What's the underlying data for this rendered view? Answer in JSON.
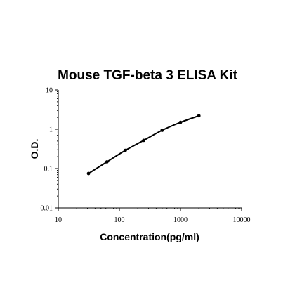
{
  "chart_data": {
    "type": "line",
    "title": "Mouse TGF-beta 3 ELISA Kit",
    "xlabel": "Concentration(pg/ml)",
    "ylabel": "O.D.",
    "x_scale": "log",
    "y_scale": "log",
    "xlim": [
      10,
      10000
    ],
    "ylim": [
      0.01,
      10
    ],
    "x_ticks": [
      {
        "value": 10,
        "label": "10"
      },
      {
        "value": 100,
        "label": "100"
      },
      {
        "value": 1000,
        "label": "1000"
      },
      {
        "value": 10000,
        "label": "10000"
      }
    ],
    "y_ticks": [
      {
        "value": 0.01,
        "label": "0.01"
      },
      {
        "value": 0.1,
        "label": "0.1"
      },
      {
        "value": 1,
        "label": "1"
      },
      {
        "value": 10,
        "label": "10"
      }
    ],
    "grid": false,
    "legend": "none",
    "series": [
      {
        "color": "#000000",
        "x": [
          31.25,
          62.5,
          125,
          250,
          500,
          1000,
          2000
        ],
        "y": [
          0.075,
          0.148,
          0.29,
          0.52,
          0.94,
          1.5,
          2.2
        ]
      }
    ]
  }
}
